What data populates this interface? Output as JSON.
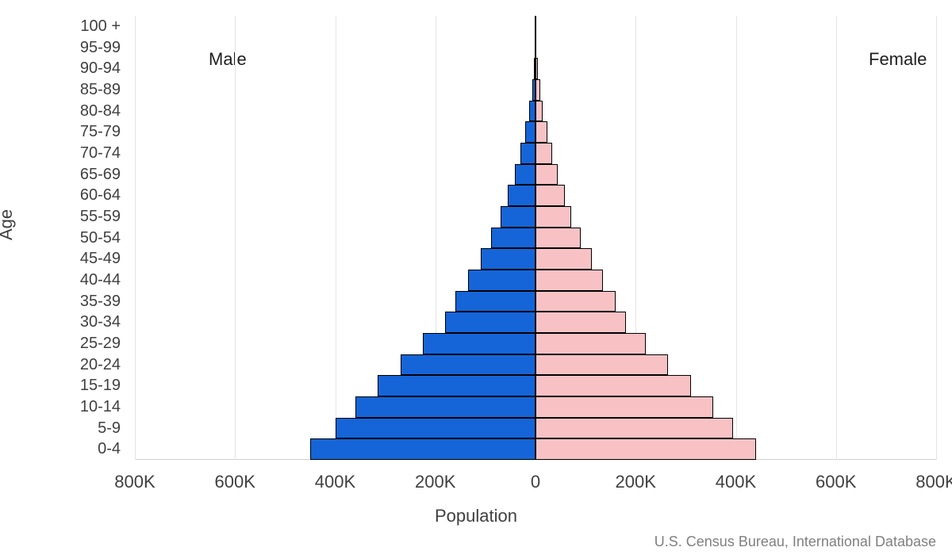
{
  "chart": {
    "type": "population-pyramid",
    "y_axis_label": "Age",
    "x_axis_label": "Population",
    "source": "U.S. Census Bureau, International Database",
    "male_label": "Male",
    "female_label": "Female",
    "male_color": "#1565d8",
    "female_color": "#f8c2c5",
    "bar_border_color": "#000000",
    "gridline_color": "#e5e5e5",
    "background_color": "#ffffff",
    "axis_text_color": "#404040",
    "title_fontsize": 22,
    "tick_fontsize": 20,
    "xlim_each_side": 800000,
    "x_tick_step": 200000,
    "x_ticks": [
      {
        "pos": -800000,
        "label": "800K"
      },
      {
        "pos": -600000,
        "label": "600K"
      },
      {
        "pos": -400000,
        "label": "400K"
      },
      {
        "pos": -200000,
        "label": "200K"
      },
      {
        "pos": 0,
        "label": "0"
      },
      {
        "pos": 200000,
        "label": "200K"
      },
      {
        "pos": 400000,
        "label": "400K"
      },
      {
        "pos": 600000,
        "label": "600K"
      },
      {
        "pos": 800000,
        "label": "800K"
      }
    ],
    "age_groups": [
      {
        "label": "0-4",
        "male": 450000,
        "female": 440000
      },
      {
        "label": "5-9",
        "male": 400000,
        "female": 395000
      },
      {
        "label": "10-14",
        "male": 360000,
        "female": 355000
      },
      {
        "label": "15-19",
        "male": 315000,
        "female": 310000
      },
      {
        "label": "20-24",
        "male": 270000,
        "female": 265000
      },
      {
        "label": "25-29",
        "male": 225000,
        "female": 220000
      },
      {
        "label": "30-34",
        "male": 180000,
        "female": 180000
      },
      {
        "label": "35-39",
        "male": 160000,
        "female": 160000
      },
      {
        "label": "40-44",
        "male": 135000,
        "female": 135000
      },
      {
        "label": "45-49",
        "male": 110000,
        "female": 112000
      },
      {
        "label": "50-54",
        "male": 88000,
        "female": 90000
      },
      {
        "label": "55-59",
        "male": 70000,
        "female": 72000
      },
      {
        "label": "60-64",
        "male": 55000,
        "female": 58000
      },
      {
        "label": "65-69",
        "male": 42000,
        "female": 45000
      },
      {
        "label": "70-74",
        "male": 30000,
        "female": 33000
      },
      {
        "label": "75-79",
        "male": 20000,
        "female": 23000
      },
      {
        "label": "80-84",
        "male": 12000,
        "female": 15000
      },
      {
        "label": "85-89",
        "male": 6000,
        "female": 9000
      },
      {
        "label": "90-94",
        "male": 2500,
        "female": 4500
      },
      {
        "label": "95-99",
        "male": 800,
        "female": 1800
      },
      {
        "label": "100 +",
        "male": 150,
        "female": 500
      }
    ]
  }
}
